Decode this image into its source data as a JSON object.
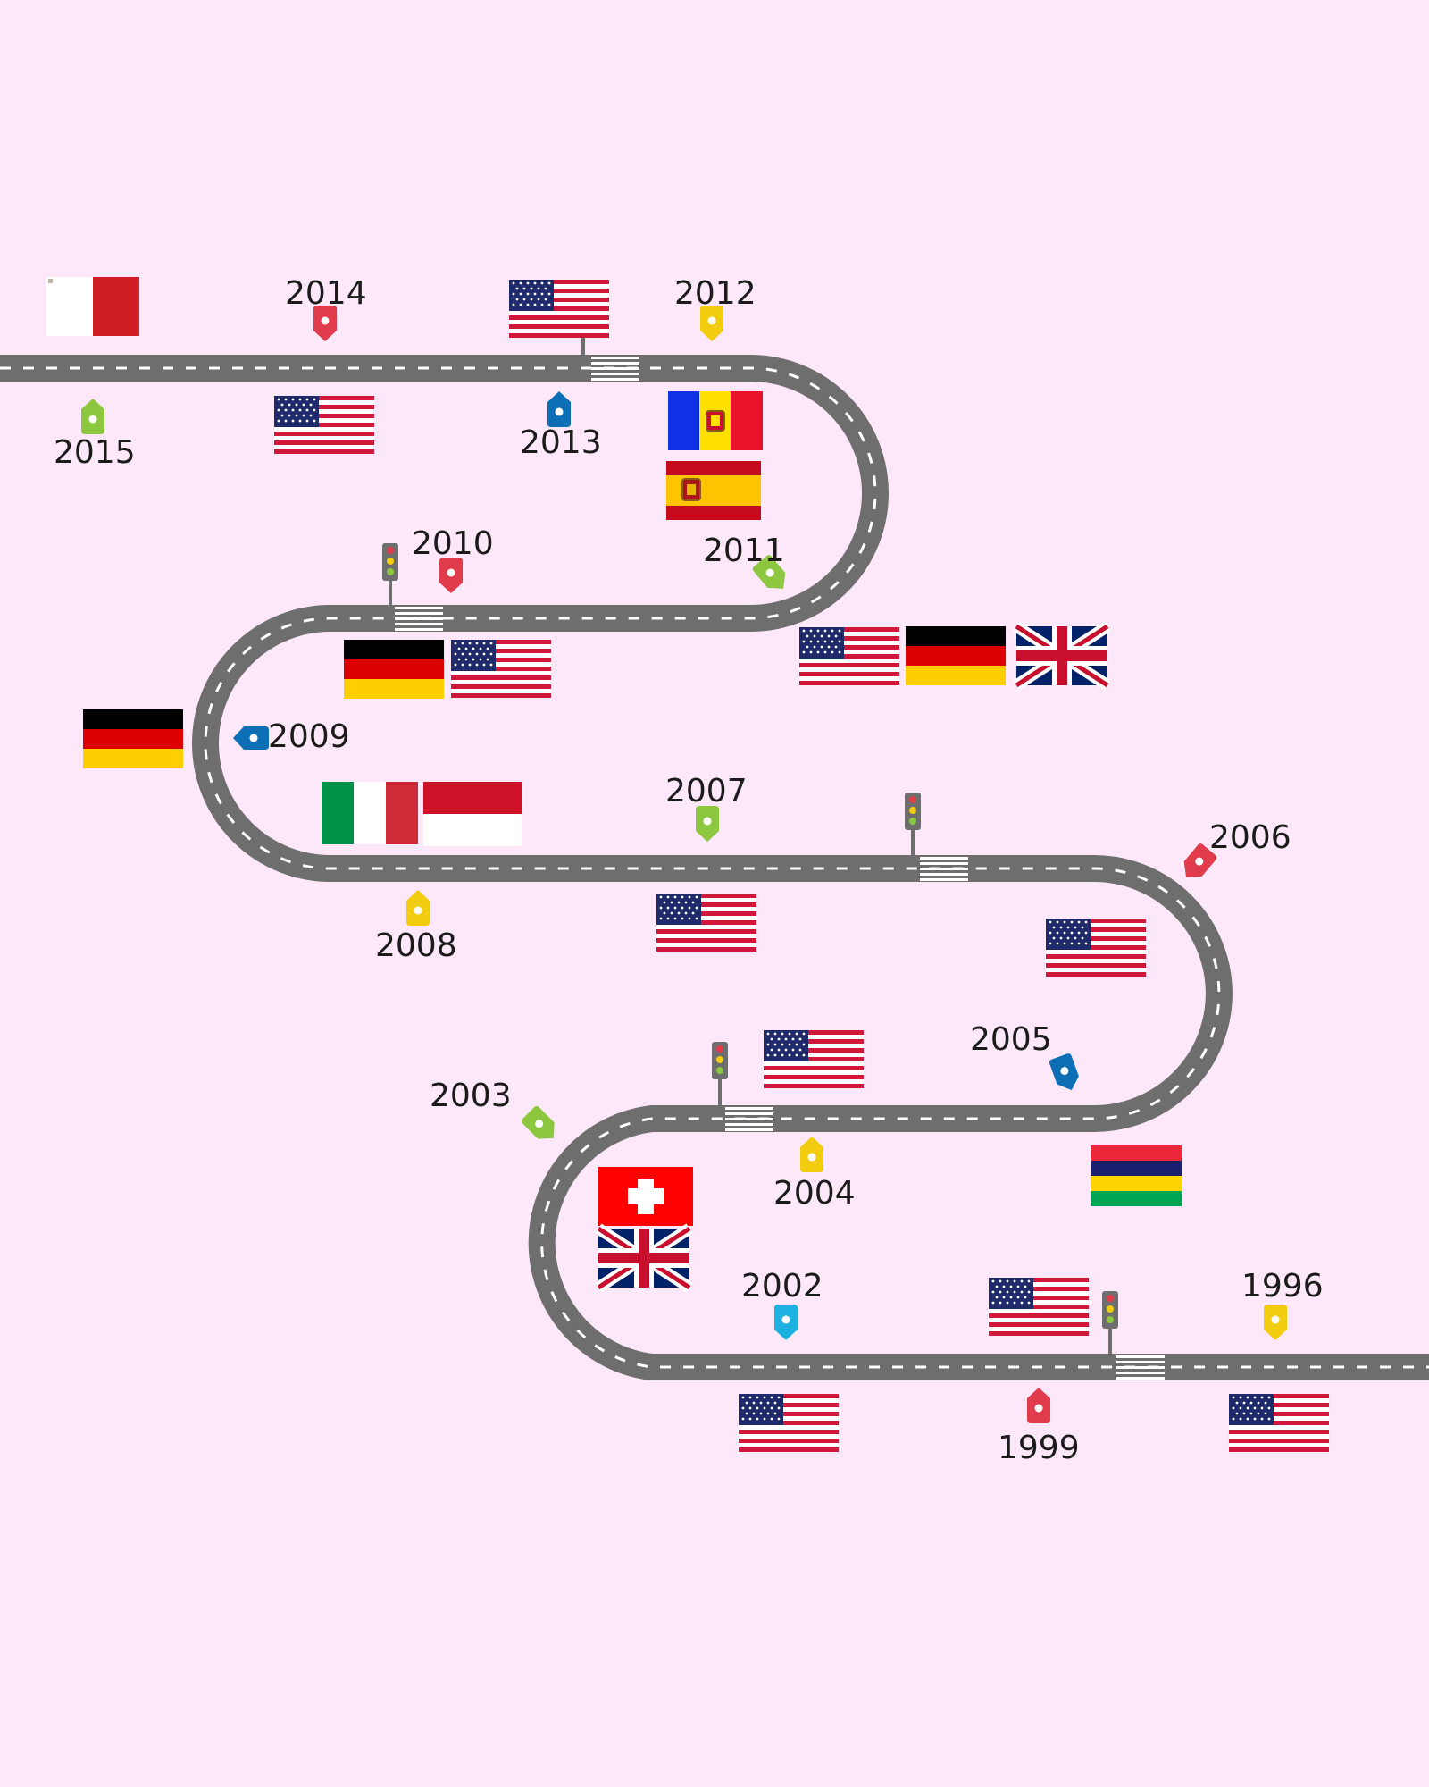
{
  "colors": {
    "background": "#fde8f9",
    "road": "#6e6e6e",
    "road_marking": "#ffffff",
    "marker_green": "#8dc63f",
    "marker_red": "#e03c4c",
    "marker_blue": "#0c6fb5",
    "marker_yellow": "#f2cd0f",
    "marker_cyan": "#1cb1e0"
  },
  "timeline": [
    {
      "year": "2015",
      "marker_color": "green",
      "flags": [
        "malta"
      ]
    },
    {
      "year": "2014",
      "marker_color": "red",
      "flags": [
        "usa"
      ]
    },
    {
      "year": "2013",
      "marker_color": "blue",
      "flags": [
        "usa"
      ]
    },
    {
      "year": "2012",
      "marker_color": "yellow",
      "flags": [
        "andorra",
        "spain"
      ]
    },
    {
      "year": "2011",
      "marker_color": "green",
      "flags": [
        "usa",
        "germany",
        "uk"
      ]
    },
    {
      "year": "2010",
      "marker_color": "red",
      "flags": [
        "germany",
        "usa"
      ]
    },
    {
      "year": "2009",
      "marker_color": "blue",
      "flags": [
        "germany"
      ]
    },
    {
      "year": "2008",
      "marker_color": "yellow",
      "flags": [
        "italy",
        "monaco"
      ]
    },
    {
      "year": "2007",
      "marker_color": "green",
      "flags": [
        "usa"
      ]
    },
    {
      "year": "2006",
      "marker_color": "red",
      "flags": [
        "usa"
      ]
    },
    {
      "year": "2005",
      "marker_color": "blue",
      "flags": [
        "mauritius"
      ]
    },
    {
      "year": "2004",
      "marker_color": "yellow",
      "flags": [
        "usa"
      ]
    },
    {
      "year": "2003",
      "marker_color": "green",
      "flags": [
        "switzerland",
        "uk"
      ]
    },
    {
      "year": "2002",
      "marker_color": "cyan",
      "flags": [
        "usa"
      ]
    },
    {
      "year": "1999",
      "marker_color": "red",
      "flags": [
        "usa"
      ]
    },
    {
      "year": "1996",
      "marker_color": "yellow",
      "flags": [
        "usa"
      ]
    }
  ]
}
